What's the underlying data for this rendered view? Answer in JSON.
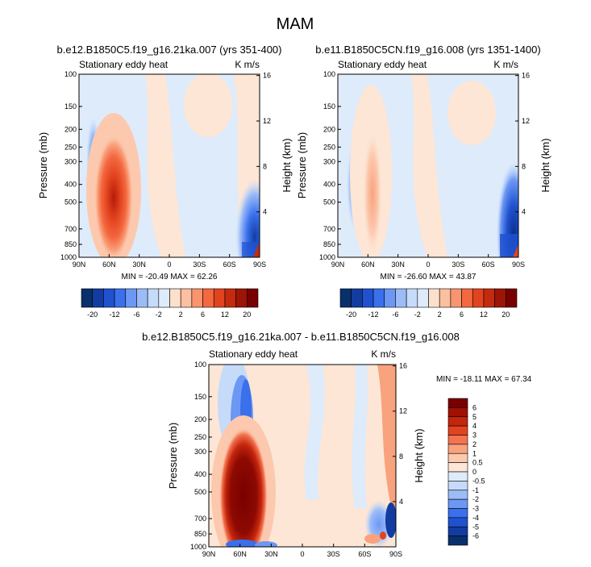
{
  "title": "MAM",
  "panels": [
    {
      "id": "a",
      "title": "b.e12.B1850C5.f19_g16.21ka.007 (yrs 351-400)",
      "left_label": "Stationary eddy heat",
      "right_label": "K m/s",
      "minmax": "MIN = -20.49  MAX = 62.26"
    },
    {
      "id": "b",
      "title": "b.e11.B1850C5CN.f19_g16.008 (yrs 1351-1400)",
      "left_label": "Stationary eddy heat",
      "right_label": "K m/s",
      "minmax": "MIN = -26.60  MAX = 43.87"
    },
    {
      "id": "c",
      "title": "b.e12.B1850C5.f19_g16.21ka.007 - b.e11.B1850C5CN.f19_g16.008",
      "left_label": "Stationary eddy heat",
      "right_label": "K m/s",
      "minmax": "MIN = -18.11  MAX = 67.34"
    }
  ],
  "axes": {
    "ylabel": "Pressure (mb)",
    "y2label": "Height (km)",
    "pressure_ticks": [
      "100",
      "150",
      "200",
      "250",
      "300",
      "400",
      "500",
      "700",
      "850",
      "1000"
    ],
    "height_ticks": [
      "16",
      "12",
      "8",
      "4"
    ],
    "lat_ticks": [
      "90N",
      "60N",
      "30N",
      "0",
      "30S",
      "60S",
      "90S"
    ]
  },
  "colorbars": {
    "top_labels": [
      "-20",
      "-12",
      "-6",
      "-2",
      "2",
      "6",
      "12",
      "20"
    ],
    "diff_labels": [
      "6",
      "5",
      "4",
      "3",
      "2",
      "1",
      "0.5",
      "0",
      "-0.5",
      "-1",
      "-2",
      "-3",
      "-4",
      "-5",
      "-6"
    ]
  },
  "colors": {
    "top_scale": [
      "#08306b",
      "#123ca0",
      "#2052d0",
      "#3a70ec",
      "#6c98f4",
      "#9cbcf8",
      "#c6dbfa",
      "#deebfb",
      "#fde0cc",
      "#fcc0a0",
      "#f9946e",
      "#f4683f",
      "#e2431f",
      "#c42b0e",
      "#9c1506",
      "#780000"
    ],
    "diff_scale": [
      "#780000",
      "#a01004",
      "#c4260c",
      "#e2431f",
      "#f47450",
      "#f9a27e",
      "#fcc9ae",
      "#fde6d6",
      "#deebfb",
      "#c6dbfa",
      "#9cbcf8",
      "#6c98f4",
      "#3a70ec",
      "#2052d0",
      "#123ca0",
      "#08306b"
    ]
  },
  "chart_data": [
    {
      "type": "heatmap",
      "title": "b.e12.B1850C5.f19_g16.21ka.007 (yrs 351-400)",
      "xlabel": "",
      "ylabel": "Pressure (mb)",
      "y2label": "Height (km)",
      "x_ticks": [
        "90N",
        "60N",
        "30N",
        "0",
        "30S",
        "60S",
        "90S"
      ],
      "y_ticks": [
        100,
        150,
        200,
        250,
        300,
        400,
        500,
        700,
        850,
        1000
      ],
      "ylog": true,
      "yreverse": true,
      "xlim": [
        90,
        -90
      ],
      "ylim": [
        1000,
        100
      ],
      "min": -20.49,
      "max": 62.26,
      "levels": [
        -20,
        -16,
        -12,
        -9,
        -6,
        -4,
        -2,
        -1,
        1,
        2,
        4,
        6,
        9,
        12,
        16,
        20
      ],
      "features": [
        {
          "lat": 55,
          "p": 450,
          "value": 24
        },
        {
          "lat": 73,
          "p": 250,
          "value": -4
        },
        {
          "lat": -78,
          "p": 500,
          "value": -12
        }
      ]
    },
    {
      "type": "heatmap",
      "title": "b.e11.B1850C5CN.f19_g16.008 (yrs 1351-1400)",
      "xlabel": "",
      "ylabel": "Pressure (mb)",
      "y2label": "Height (km)",
      "x_ticks": [
        "90N",
        "60N",
        "30N",
        "0",
        "30S",
        "60S",
        "90S"
      ],
      "y_ticks": [
        100,
        150,
        200,
        250,
        300,
        400,
        500,
        700,
        850,
        1000
      ],
      "ylog": true,
      "yreverse": true,
      "xlim": [
        90,
        -90
      ],
      "ylim": [
        1000,
        100
      ],
      "min": -26.6,
      "max": 43.87,
      "levels": [
        -20,
        -16,
        -12,
        -9,
        -6,
        -4,
        -2,
        -1,
        1,
        2,
        4,
        6,
        9,
        12,
        16,
        20
      ],
      "features": [
        {
          "lat": 55,
          "p": 500,
          "value": 3
        },
        {
          "lat": 75,
          "p": 350,
          "value": -3
        },
        {
          "lat": -78,
          "p": 550,
          "value": -16
        }
      ]
    },
    {
      "type": "heatmap",
      "title": "b.e12.B1850C5.f19_g16.21ka.007 - b.e11.B1850C5CN.f19_g16.008",
      "xlabel": "",
      "ylabel": "Pressure (mb)",
      "y2label": "Height (km)",
      "x_ticks": [
        "90N",
        "60N",
        "30N",
        "0",
        "30S",
        "60S",
        "90S"
      ],
      "y_ticks": [
        100,
        150,
        200,
        250,
        300,
        400,
        500,
        700,
        850,
        1000
      ],
      "ylog": true,
      "yreverse": true,
      "xlim": [
        90,
        -90
      ],
      "ylim": [
        1000,
        100
      ],
      "min": -18.11,
      "max": 67.34,
      "levels": [
        -6,
        -5,
        -4,
        -3,
        -2,
        -1,
        -0.5,
        0,
        0.5,
        1,
        2,
        3,
        4,
        5,
        6
      ],
      "features": [
        {
          "lat": 55,
          "p": 450,
          "value": 6
        },
        {
          "lat": 70,
          "p": 300,
          "value": -3
        },
        {
          "lat": -75,
          "p": 500,
          "value": 2
        },
        {
          "lat": -82,
          "p": 700,
          "value": -3
        }
      ]
    }
  ]
}
